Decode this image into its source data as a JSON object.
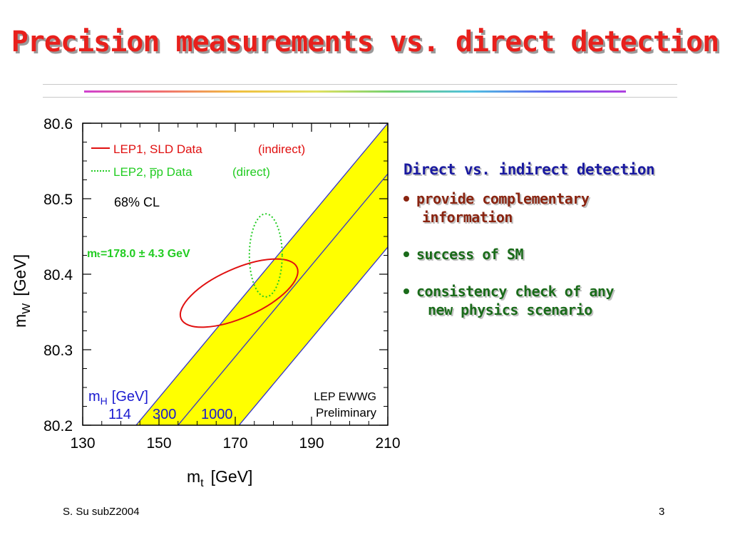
{
  "slide": {
    "title": "Precision measurements vs. direct detection",
    "footer_left": "S. Su  subZ2004",
    "footer_right": "3"
  },
  "bullets": {
    "heading": "Direct vs. indirect detection",
    "items": [
      {
        "lines": [
          "provide complementary",
          "information"
        ]
      },
      {
        "lines": [
          "success of SM"
        ]
      },
      {
        "lines": [
          "consistency check of any",
          "new physics scenario"
        ]
      }
    ]
  },
  "colors": {
    "title": "#e8201c",
    "band": "#ffff00",
    "band_edge": "#3333cc",
    "indirect": "#e01010",
    "direct": "#22cc22",
    "mh_label": "#1a1ad0"
  },
  "chart_data": {
    "type": "line",
    "xlabel_main": "m",
    "xlabel_sub": "t",
    "xlabel_unit": "[GeV]",
    "ylabel_main": "m",
    "ylabel_sub": "W",
    "ylabel_unit": "[GeV]",
    "xlim": [
      130,
      210
    ],
    "ylim": [
      80.2,
      80.6
    ],
    "x_ticks": [
      130,
      150,
      170,
      190,
      210
    ],
    "y_ticks": [
      80.2,
      80.3,
      80.4,
      80.5,
      80.6
    ],
    "x_tick_labels": [
      "130",
      "150",
      "170",
      "190",
      "210"
    ],
    "y_tick_labels": [
      "80.2",
      "80.3",
      "80.4",
      "80.5",
      "80.6"
    ],
    "legend": {
      "lep1_label": "LEP1, SLD Data",
      "lep1_tag": "(indirect)",
      "lep2_label": "LEP2, p̅p Data",
      "lep2_tag": "(direct)",
      "cl": "68% CL"
    },
    "mt_annotation": "mₜ=178.0 ±  4.3 GeV",
    "mh_label_main": "m",
    "mh_label_sub": "H",
    "mh_label_unit": "[GeV]",
    "mh_values": [
      "114",
      "300",
      "1000"
    ],
    "group_label": "LEP EWWG",
    "group_sub": "Preliminary",
    "sm_band": {
      "lines": [
        {
          "mH": "114",
          "points": [
            [
              144,
              80.2
            ],
            [
              210,
              80.6
            ]
          ]
        },
        {
          "mH": "300",
          "points": [
            [
              155,
              80.2
            ],
            [
              210,
              80.533
            ]
          ]
        },
        {
          "mH": "1000",
          "points": [
            [
              171,
              80.2
            ],
            [
              210,
              80.436
            ]
          ]
        }
      ]
    },
    "indirect_ellipse": {
      "center": [
        171,
        80.375
      ],
      "semi_axes_px": null,
      "x_extent": [
        159,
        194
      ],
      "y_extent": [
        80.33,
        80.42
      ],
      "tilt_deg": -24
    },
    "direct_ellipse": {
      "center": [
        178.0,
        80.425
      ],
      "x_extent": [
        173.7,
        182.3
      ],
      "y_extent": [
        80.37,
        80.48
      ]
    }
  }
}
